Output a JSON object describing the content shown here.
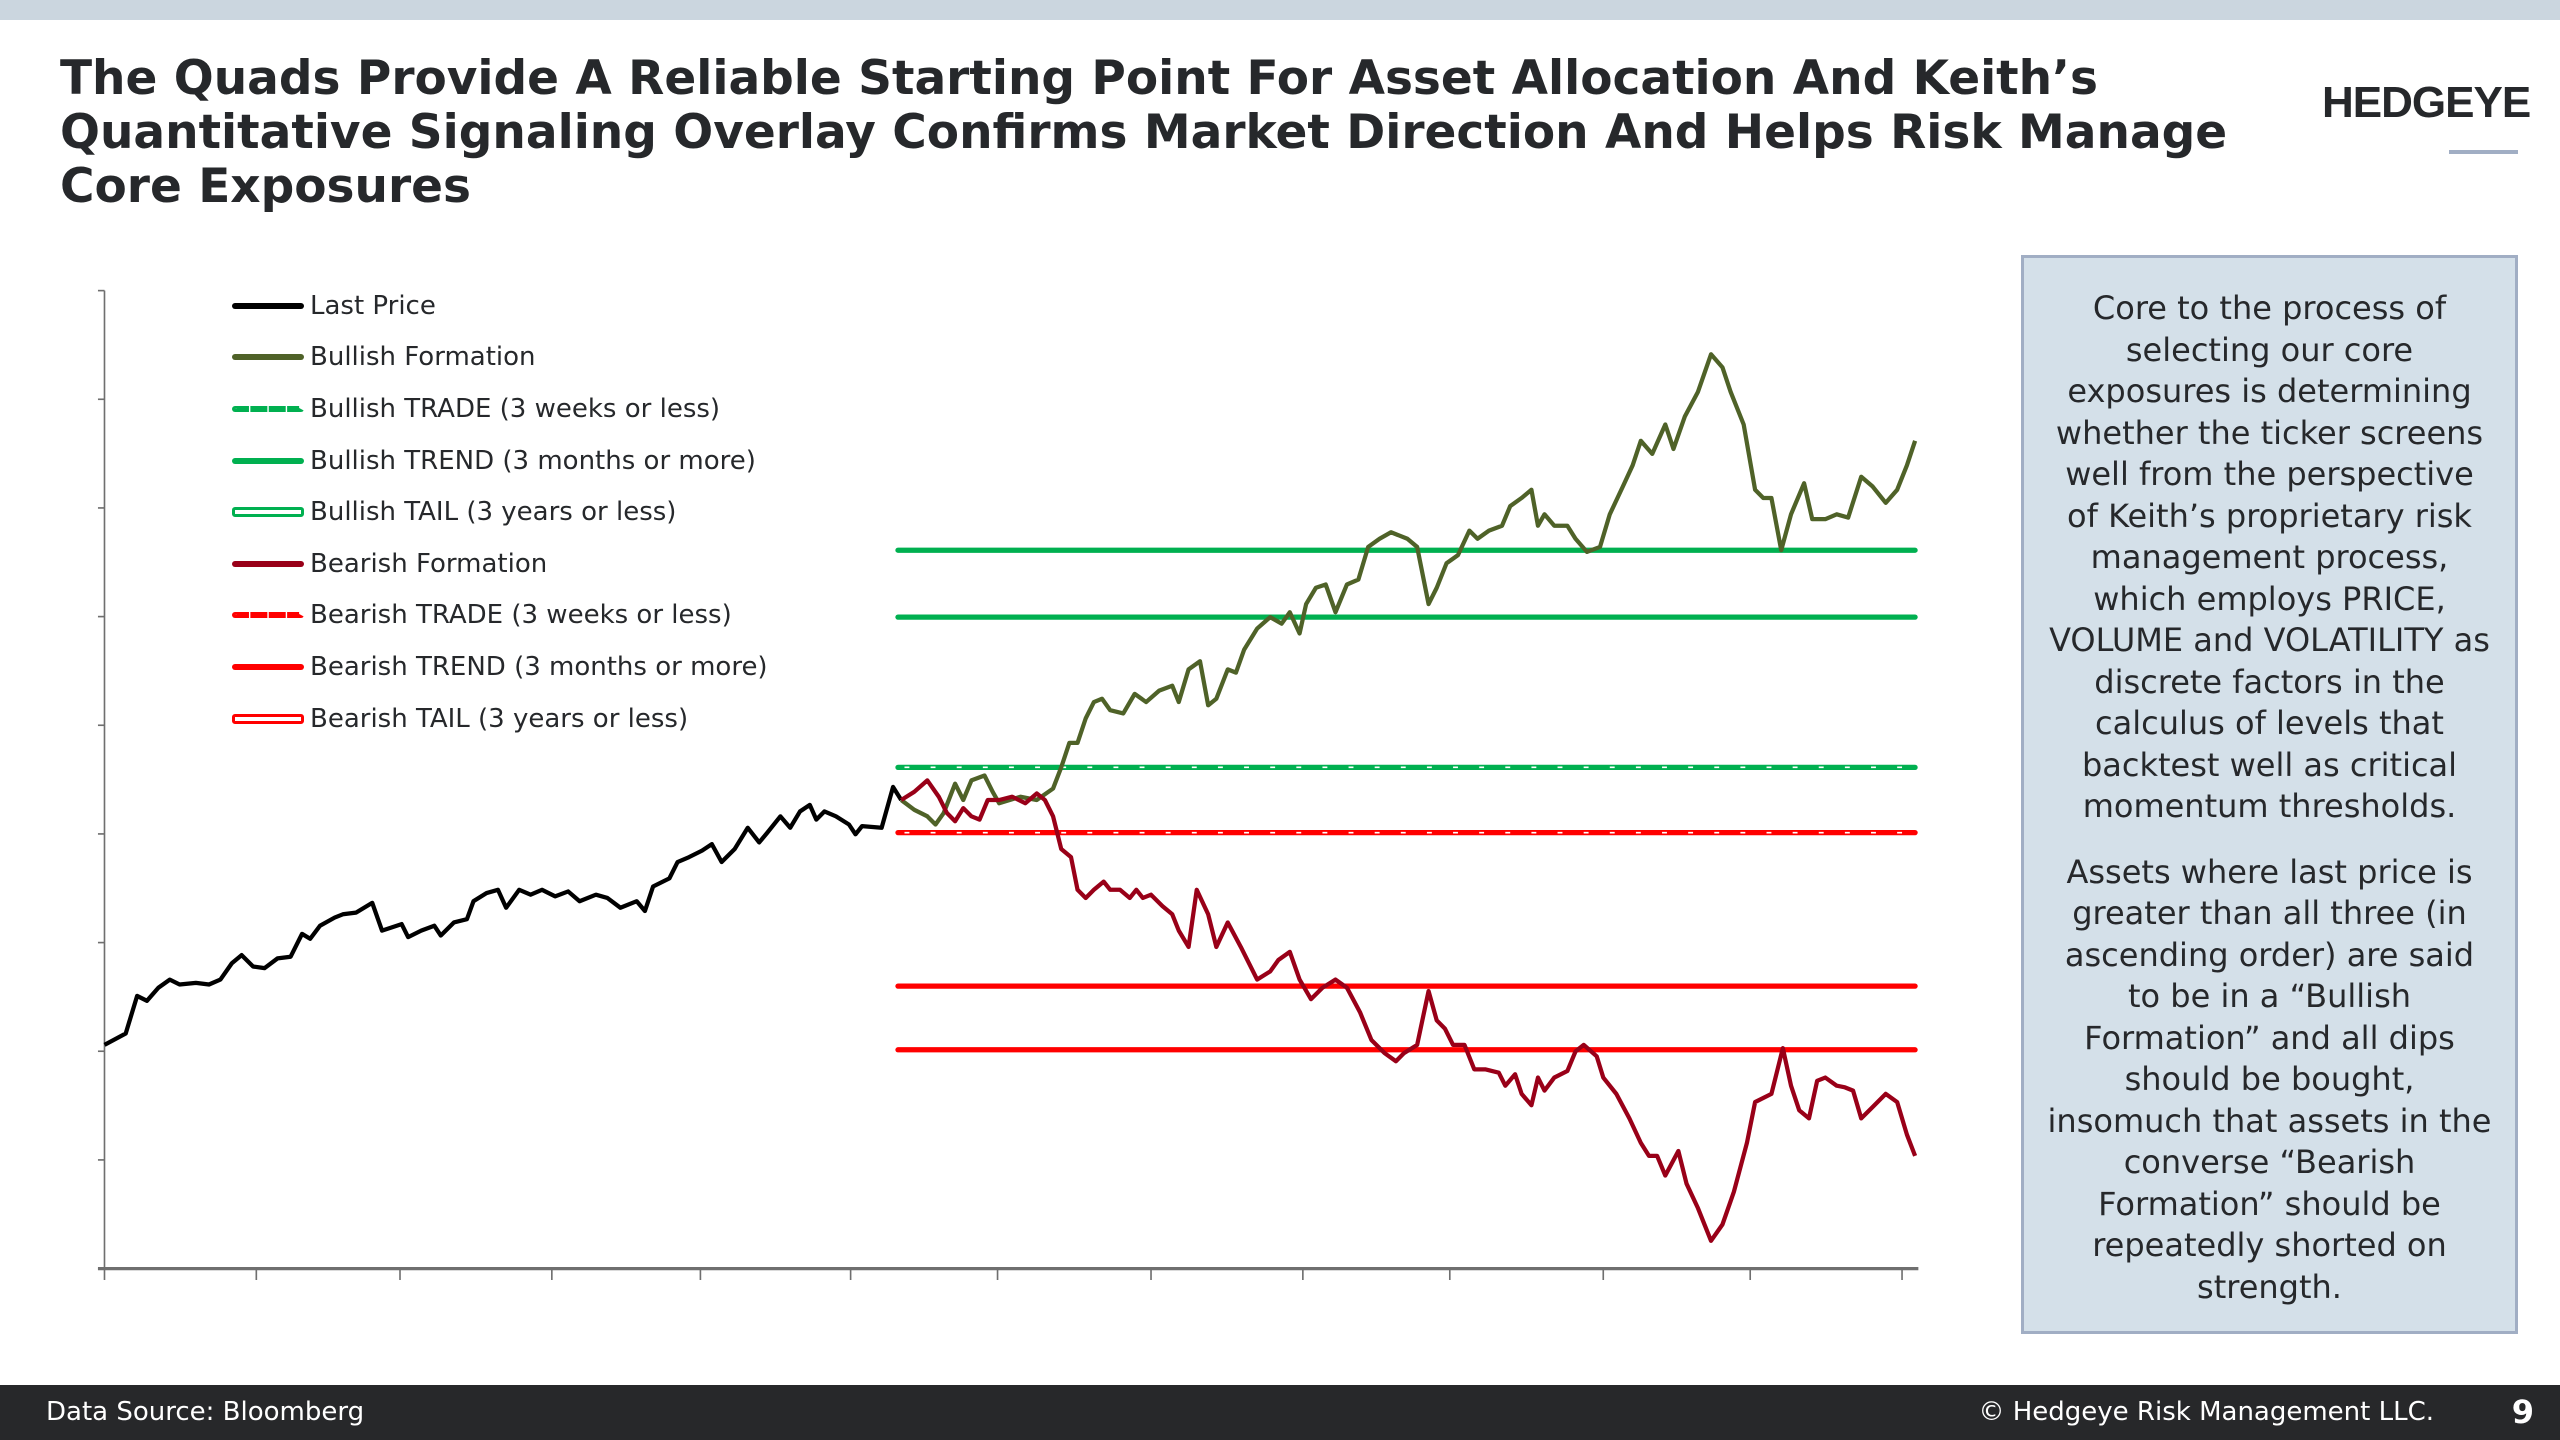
{
  "header": {
    "title": "The Quads Provide A Reliable Starting Point For Asset Allocation And Keith’s Quantitative Signaling Overlay Confirms Market Direction And Helps Risk Manage Core Exposures",
    "logo": "HEDGEYE"
  },
  "legend": [
    {
      "label": "Last Price",
      "color": "#000000",
      "style": "solid"
    },
    {
      "label": "Bullish Formation",
      "color": "#4f6228",
      "style": "solid"
    },
    {
      "label": "Bullish TRADE (3 weeks or less)",
      "color": "#00b050",
      "style": "dash"
    },
    {
      "label": "Bullish TREND (3 months or more)",
      "color": "#00b050",
      "style": "solid"
    },
    {
      "label": "Bullish TAIL (3 years or less)",
      "color": "#00b050",
      "style": "tail"
    },
    {
      "label": "Bearish Formation",
      "color": "#990018",
      "style": "solid"
    },
    {
      "label": "Bearish TRADE (3 weeks or less)",
      "color": "#ff0000",
      "style": "dash"
    },
    {
      "label": "Bearish TREND (3 months or more)",
      "color": "#ff0000",
      "style": "solid"
    },
    {
      "label": "Bearish TAIL (3 years or less)",
      "color": "#ff0000",
      "style": "tail"
    }
  ],
  "sidebox": {
    "paragraph1": "Core to the process of selecting our core exposures is determining whether the ticker screens well from the perspective of Keith’s proprietary risk management process, which employs PRICE, VOLUME and VOLATILITY as discrete factors in the calculus of levels that backtest well as critical momentum thresholds.",
    "paragraph2": "Assets where last price is greater than all three (in ascending order) are said to be in a “Bullish Formation” and all dips should be bought, insomuch that assets in the converse “Bearish Formation” should be repeatedly shorted on strength."
  },
  "footer": {
    "source": "Data Source: Bloomberg",
    "copyright": "© Hedgeye Risk Management LLC.",
    "page": "9"
  },
  "chart_data": {
    "type": "line",
    "title": "",
    "xlabel": "",
    "ylabel": "",
    "xlim": [
      0,
      1101
    ],
    "ylim": [
      0,
      599
    ],
    "x_tick_count": 13,
    "y_tick_count": 10,
    "tick_labels_shown": false,
    "grid": false,
    "legend_position": "top-left",
    "series": [
      {
        "name": "Last Price",
        "color": "#000000",
        "points": [
          [
            0,
            137
          ],
          [
            13,
            144
          ],
          [
            20,
            167
          ],
          [
            26,
            164
          ],
          [
            33,
            172
          ],
          [
            40,
            177
          ],
          [
            46,
            174
          ],
          [
            56,
            175
          ],
          [
            64,
            174
          ],
          [
            71,
            177
          ],
          [
            78,
            187
          ],
          [
            84,
            192
          ],
          [
            91,
            185
          ],
          [
            98,
            184
          ],
          [
            106,
            190
          ],
          [
            114,
            191
          ],
          [
            121,
            205
          ],
          [
            126,
            202
          ],
          [
            132,
            210
          ],
          [
            141,
            215
          ],
          [
            146,
            217
          ],
          [
            154,
            218
          ],
          [
            164,
            224
          ],
          [
            170,
            207
          ],
          [
            176,
            209
          ],
          [
            182,
            211
          ],
          [
            186,
            203
          ],
          [
            194,
            207
          ],
          [
            202,
            210
          ],
          [
            206,
            204
          ],
          [
            214,
            212
          ],
          [
            222,
            214
          ],
          [
            226,
            225
          ],
          [
            234,
            230
          ],
          [
            241,
            232
          ],
          [
            246,
            221
          ],
          [
            254,
            232
          ],
          [
            261,
            229
          ],
          [
            268,
            232
          ],
          [
            276,
            228
          ],
          [
            284,
            231
          ],
          [
            291,
            225
          ],
          [
            301,
            229
          ],
          [
            308,
            227
          ],
          [
            316,
            221
          ],
          [
            326,
            225
          ],
          [
            331,
            219
          ],
          [
            336,
            234
          ],
          [
            346,
            239
          ],
          [
            351,
            249
          ],
          [
            358,
            252
          ],
          [
            366,
            256
          ],
          [
            372,
            260
          ],
          [
            378,
            249
          ],
          [
            386,
            257
          ],
          [
            394,
            270
          ],
          [
            401,
            261
          ],
          [
            406,
            267
          ],
          [
            414,
            277
          ],
          [
            420,
            270
          ],
          [
            426,
            280
          ],
          [
            432,
            284
          ],
          [
            436,
            275
          ],
          [
            441,
            280
          ],
          [
            448,
            277
          ],
          [
            456,
            272
          ],
          [
            460,
            266
          ],
          [
            464,
            271
          ],
          [
            476,
            270
          ],
          [
            483,
            295
          ],
          [
            488,
            287
          ]
        ]
      },
      {
        "name": "Bullish Formation",
        "color": "#4f6228",
        "points": [
          [
            488,
            287
          ],
          [
            496,
            281
          ],
          [
            504,
            277
          ],
          [
            509,
            272
          ],
          [
            514,
            279
          ],
          [
            521,
            297
          ],
          [
            526,
            287
          ],
          [
            531,
            299
          ],
          [
            539,
            302
          ],
          [
            544,
            292
          ],
          [
            548,
            285
          ],
          [
            561,
            289
          ],
          [
            571,
            287
          ],
          [
            581,
            294
          ],
          [
            586,
            307
          ],
          [
            591,
            322
          ],
          [
            596,
            322
          ],
          [
            601,
            337
          ],
          [
            606,
            347
          ],
          [
            611,
            349
          ],
          [
            616,
            342
          ],
          [
            624,
            340
          ],
          [
            631,
            352
          ],
          [
            638,
            347
          ],
          [
            646,
            354
          ],
          [
            654,
            357
          ],
          [
            658,
            347
          ],
          [
            664,
            367
          ],
          [
            671,
            372
          ],
          [
            676,
            345
          ],
          [
            681,
            349
          ],
          [
            688,
            367
          ],
          [
            693,
            365
          ],
          [
            698,
            379
          ],
          [
            706,
            392
          ],
          [
            714,
            399
          ],
          [
            721,
            395
          ],
          [
            726,
            402
          ],
          [
            732,
            389
          ],
          [
            736,
            407
          ],
          [
            742,
            417
          ],
          [
            748,
            419
          ],
          [
            754,
            402
          ],
          [
            761,
            419
          ],
          [
            768,
            422
          ],
          [
            774,
            442
          ],
          [
            781,
            447
          ],
          [
            788,
            451
          ],
          [
            798,
            447
          ],
          [
            804,
            442
          ],
          [
            811,
            407
          ],
          [
            816,
            417
          ],
          [
            822,
            432
          ],
          [
            829,
            437
          ],
          [
            836,
            452
          ],
          [
            841,
            447
          ],
          [
            848,
            452
          ],
          [
            856,
            455
          ],
          [
            861,
            467
          ],
          [
            868,
            472
          ],
          [
            874,
            477
          ],
          [
            878,
            455
          ],
          [
            882,
            462
          ],
          [
            888,
            455
          ],
          [
            896,
            455
          ],
          [
            901,
            447
          ],
          [
            908,
            439
          ],
          [
            916,
            442
          ],
          [
            922,
            462
          ],
          [
            930,
            479
          ],
          [
            936,
            492
          ],
          [
            941,
            507
          ],
          [
            948,
            499
          ],
          [
            956,
            517
          ],
          [
            961,
            502
          ],
          [
            968,
            522
          ],
          [
            976,
            537
          ],
          [
            984,
            560
          ],
          [
            991,
            552
          ],
          [
            996,
            537
          ],
          [
            1004,
            517
          ],
          [
            1011,
            477
          ],
          [
            1016,
            472
          ],
          [
            1021,
            472
          ],
          [
            1027,
            440
          ],
          [
            1033,
            462
          ],
          [
            1041,
            481
          ],
          [
            1046,
            459
          ],
          [
            1054,
            459
          ],
          [
            1061,
            462
          ],
          [
            1068,
            460
          ],
          [
            1076,
            485
          ],
          [
            1083,
            479
          ],
          [
            1091,
            469
          ],
          [
            1098,
            477
          ],
          [
            1104,
            492
          ],
          [
            1109,
            507
          ]
        ]
      },
      {
        "name": "Bearish Formation",
        "color": "#990018",
        "points": [
          [
            488,
            287
          ],
          [
            496,
            292
          ],
          [
            504,
            299
          ],
          [
            511,
            289
          ],
          [
            516,
            279
          ],
          [
            521,
            274
          ],
          [
            526,
            282
          ],
          [
            531,
            277
          ],
          [
            536,
            275
          ],
          [
            541,
            287
          ],
          [
            548,
            287
          ],
          [
            556,
            289
          ],
          [
            564,
            285
          ],
          [
            571,
            291
          ],
          [
            576,
            287
          ],
          [
            581,
            277
          ],
          [
            586,
            257
          ],
          [
            592,
            252
          ],
          [
            596,
            232
          ],
          [
            601,
            227
          ],
          [
            606,
            232
          ],
          [
            612,
            237
          ],
          [
            616,
            232
          ],
          [
            622,
            232
          ],
          [
            628,
            227
          ],
          [
            632,
            232
          ],
          [
            636,
            227
          ],
          [
            641,
            229
          ],
          [
            648,
            222
          ],
          [
            654,
            217
          ],
          [
            658,
            207
          ],
          [
            664,
            197
          ],
          [
            669,
            232
          ],
          [
            676,
            217
          ],
          [
            681,
            197
          ],
          [
            688,
            212
          ],
          [
            696,
            197
          ],
          [
            706,
            177
          ],
          [
            714,
            182
          ],
          [
            719,
            189
          ],
          [
            726,
            194
          ],
          [
            732,
            177
          ],
          [
            739,
            165
          ],
          [
            746,
            172
          ],
          [
            754,
            177
          ],
          [
            761,
            172
          ],
          [
            769,
            157
          ],
          [
            776,
            140
          ],
          [
            784,
            132
          ],
          [
            791,
            127
          ],
          [
            796,
            132
          ],
          [
            804,
            137
          ],
          [
            811,
            170
          ],
          [
            816,
            152
          ],
          [
            821,
            147
          ],
          [
            826,
            137
          ],
          [
            833,
            137
          ],
          [
            839,
            122
          ],
          [
            846,
            122
          ],
          [
            854,
            120
          ],
          [
            858,
            112
          ],
          [
            864,
            119
          ],
          [
            868,
            107
          ],
          [
            874,
            100
          ],
          [
            878,
            117
          ],
          [
            882,
            109
          ],
          [
            888,
            117
          ],
          [
            896,
            121
          ],
          [
            901,
            133
          ],
          [
            906,
            137
          ],
          [
            914,
            130
          ],
          [
            918,
            117
          ],
          [
            926,
            107
          ],
          [
            934,
            92
          ],
          [
            941,
            77
          ],
          [
            946,
            69
          ],
          [
            951,
            69
          ],
          [
            956,
            57
          ],
          [
            964,
            72
          ],
          [
            969,
            52
          ],
          [
            976,
            37
          ],
          [
            984,
            17
          ],
          [
            991,
            27
          ],
          [
            998,
            47
          ],
          [
            1006,
            77
          ],
          [
            1011,
            102
          ],
          [
            1021,
            107
          ],
          [
            1028,
            135
          ],
          [
            1033,
            112
          ],
          [
            1038,
            97
          ],
          [
            1044,
            92
          ],
          [
            1049,
            115
          ],
          [
            1054,
            117
          ],
          [
            1061,
            112
          ],
          [
            1066,
            111
          ],
          [
            1071,
            109
          ],
          [
            1076,
            92
          ],
          [
            1083,
            99
          ],
          [
            1091,
            107
          ],
          [
            1098,
            102
          ],
          [
            1104,
            82
          ],
          [
            1109,
            69
          ]
        ]
      }
    ],
    "levels": [
      {
        "name": "Bullish TAIL",
        "value": 440,
        "color": "#00b050",
        "style": "tail",
        "x_range": [
          486,
          1109
        ]
      },
      {
        "name": "Bullish TREND",
        "value": 399,
        "color": "#00b050",
        "style": "solid",
        "x_range": [
          486,
          1109
        ]
      },
      {
        "name": "Bullish TRADE",
        "value": 307,
        "color": "#00b050",
        "style": "dash",
        "x_range": [
          486,
          1109
        ]
      },
      {
        "name": "Bearish TRADE",
        "value": 267,
        "color": "#ff0000",
        "style": "dash",
        "x_range": [
          486,
          1109
        ]
      },
      {
        "name": "Bearish TREND",
        "value": 173,
        "color": "#ff0000",
        "style": "solid",
        "x_range": [
          486,
          1109
        ]
      },
      {
        "name": "Bearish TAIL",
        "value": 134,
        "color": "#ff0000",
        "style": "tail",
        "x_range": [
          486,
          1109
        ]
      }
    ]
  }
}
